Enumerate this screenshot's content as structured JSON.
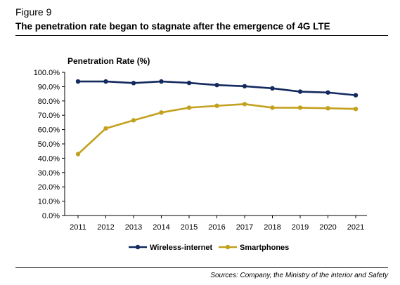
{
  "figure_label": "Figure 9",
  "figure_title": "The penetration rate began to stagnate after the emergence of 4G LTE",
  "source": "Sources: Company, the Ministry of the interior and Safety",
  "chart_data": {
    "type": "line",
    "title": "",
    "xlabel": "",
    "ylabel": "Penetration Rate (%)",
    "x": [
      "2011",
      "2012",
      "2013",
      "2014",
      "2015",
      "2016",
      "2017",
      "2018",
      "2019",
      "2020",
      "2021"
    ],
    "y_ticks": [
      "0.0%",
      "10.0%",
      "20.0%",
      "30.0%",
      "40.0%",
      "50.0%",
      "60.0%",
      "70.0%",
      "80.0%",
      "90.0%",
      "100.0%"
    ],
    "ylim": [
      0,
      100
    ],
    "grid": false,
    "legend_position": "bottom",
    "series": [
      {
        "name": "Wireless-internet",
        "color": "#132a5e",
        "marker": "circle",
        "values": [
          93.6,
          93.6,
          92.5,
          93.6,
          92.6,
          91.1,
          90.3,
          88.8,
          86.5,
          85.9,
          84.0
        ]
      },
      {
        "name": "Smartphones",
        "color": "#c3a11e",
        "marker": "circle",
        "values": [
          42.9,
          60.8,
          66.5,
          71.9,
          75.3,
          76.6,
          77.8,
          75.3,
          75.3,
          74.9,
          74.4
        ]
      }
    ]
  }
}
